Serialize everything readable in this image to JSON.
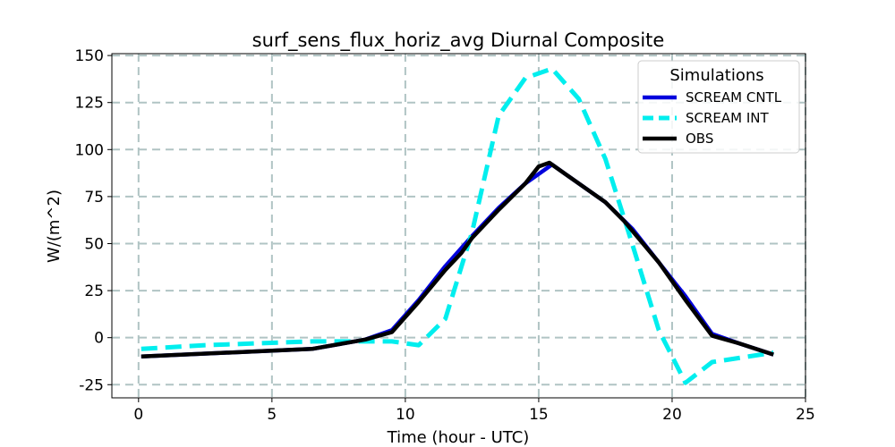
{
  "chart_data": {
    "type": "line",
    "title": "surf_sens_flux_horiz_avg Diurnal Composite",
    "xlabel": "Time (hour - UTC)",
    "ylabel": "W/(m^2)",
    "xlim": [
      -1,
      25
    ],
    "ylim": [
      -32,
      151
    ],
    "xticks": [
      0,
      5,
      10,
      15,
      20,
      25
    ],
    "yticks": [
      -25,
      0,
      25,
      50,
      75,
      100,
      125,
      150
    ],
    "grid": true,
    "legend": {
      "title": "Simulations",
      "placement": "top-right"
    },
    "series": [
      {
        "name": "SCREAM CNTL",
        "color": "#0000dd",
        "style": "solid",
        "x": [
          0.1,
          6.5,
          8.5,
          9.5,
          10.5,
          11.5,
          12.5,
          13.5,
          14.5,
          15.5,
          16.5,
          17.5,
          18.5,
          19.5,
          20.5,
          21.5,
          22.5,
          23.8
        ],
        "y": [
          -10,
          -6,
          -1,
          4,
          20,
          38,
          54,
          69,
          82,
          92,
          82,
          72,
          58,
          40,
          22,
          2,
          -3,
          -9
        ]
      },
      {
        "name": "SCREAM INT",
        "color": "#00eeee",
        "style": "dashed",
        "x": [
          0.1,
          2.5,
          4.5,
          6.5,
          8.5,
          9.5,
          10.5,
          11.5,
          12.5,
          13.5,
          14.5,
          15.5,
          16.5,
          17.5,
          18.5,
          19.5,
          20.5,
          21.5,
          23.8
        ],
        "y": [
          -6,
          -4,
          -3,
          -2,
          -2,
          -2,
          -4,
          10,
          56,
          118,
          138,
          143,
          127,
          95,
          50,
          4,
          -24,
          -13,
          -8
        ]
      },
      {
        "name": "OBS",
        "color": "#000000",
        "style": "solid",
        "x": [
          0.1,
          6.5,
          8.5,
          9.5,
          10.5,
          11.5,
          12.1,
          12.5,
          13.5,
          14.5,
          15.0,
          15.4,
          16.5,
          17.5,
          18.2,
          19.5,
          20.5,
          21.5,
          22.5,
          23.8
        ],
        "y": [
          -10,
          -6,
          -1,
          3,
          19,
          36,
          45,
          53,
          68,
          82,
          91,
          93,
          82,
          72,
          62,
          40,
          20,
          1,
          -3,
          -9
        ]
      }
    ]
  }
}
